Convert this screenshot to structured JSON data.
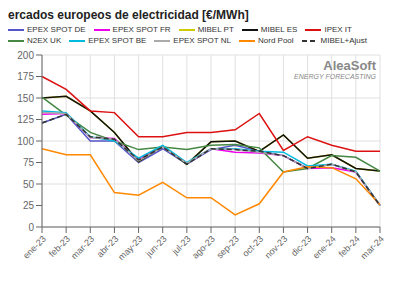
{
  "chart_data": {
    "type": "line",
    "title": "ercados europeos de electricidad [€/MWh]",
    "categories": [
      "ene-23",
      "feb-23",
      "mar-23",
      "abr-23",
      "may-23",
      "jun-23",
      "jul-23",
      "ago-23",
      "sep-23",
      "oct-23",
      "nov-23",
      "dic-23",
      "ene-24",
      "feb-24",
      "mar-24"
    ],
    "series": [
      {
        "name": "EPEX SPOT DE",
        "color": "#5555cc",
        "line_style": "solid",
        "values": [
          121,
          131,
          100,
          100,
          75,
          91,
          73,
          90,
          95,
          88,
          83,
          68,
          73,
          64,
          25
        ]
      },
      {
        "name": "EPEX SPOT FR",
        "color": "#ee00ee",
        "line_style": "solid",
        "values": [
          131,
          132,
          104,
          103,
          78,
          94,
          74,
          91,
          87,
          86,
          83,
          68,
          69,
          64,
          25
        ]
      },
      {
        "name": "MIBEL PT",
        "color": "#cccc00",
        "line_style": "solid",
        "values": [
          150,
          152,
          135,
          110,
          76,
          94,
          73,
          99,
          100,
          88,
          107,
          80,
          84,
          68,
          65
        ]
      },
      {
        "name": "MIBEL ES",
        "color": "#111111",
        "line_style": "solid",
        "values": [
          150,
          152,
          135,
          110,
          76,
          94,
          73,
          99,
          100,
          88,
          107,
          80,
          84,
          68,
          65
        ]
      },
      {
        "name": "IPEX IT",
        "color": "#dd1111",
        "line_style": "solid",
        "values": [
          175,
          160,
          135,
          133,
          105,
          105,
          110,
          110,
          113,
          132,
          89,
          105,
          95,
          88,
          88
        ]
      },
      {
        "name": "N2EX UK",
        "color": "#448844",
        "line_style": "solid",
        "values": [
          151,
          130,
          110,
          100,
          90,
          93,
          90,
          95,
          96,
          92,
          64,
          68,
          83,
          81,
          65
        ]
      },
      {
        "name": "EPEX SPOT BE",
        "color": "#00bbdd",
        "line_style": "solid",
        "values": [
          135,
          133,
          105,
          100,
          80,
          95,
          75,
          91,
          91,
          88,
          87,
          71,
          73,
          65,
          25
        ]
      },
      {
        "name": "EPEX SPOT NL",
        "color": "#aaaaaa",
        "line_style": "solid",
        "values": [
          133,
          132,
          104,
          102,
          77,
          93,
          74,
          91,
          90,
          87,
          83,
          68,
          73,
          64,
          25
        ]
      },
      {
        "name": "Nord Pool",
        "color": "#ff8800",
        "line_style": "solid",
        "values": [
          91,
          84,
          84,
          40,
          37,
          52,
          34,
          34,
          14,
          27,
          64,
          70,
          69,
          56,
          26
        ]
      },
      {
        "name": "MIBEL+Ajust",
        "color": "#333333",
        "line_style": "dashed",
        "values": [
          121,
          131,
          105,
          102,
          78,
          93,
          73,
          91,
          90,
          88,
          83,
          68,
          73,
          64,
          25
        ]
      }
    ],
    "ylim": [
      0,
      200
    ],
    "yticks": [
      0,
      25,
      50,
      75,
      100,
      125,
      150,
      175,
      200
    ],
    "grid": true,
    "legend": "top",
    "annotations": [
      "AleaSoft",
      "ENERGY FORECASTING"
    ]
  }
}
